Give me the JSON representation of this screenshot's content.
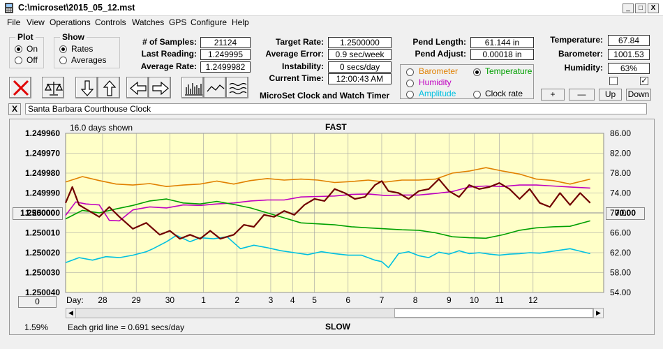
{
  "window": {
    "title": "C:\\microset\\2015_05_12.mst",
    "controls": [
      "_",
      "□",
      "X"
    ]
  },
  "menu": [
    "File",
    "View",
    "Operations",
    "Controls",
    "Watches",
    "GPS",
    "Configure",
    "Help"
  ],
  "plot_group": {
    "title": "Plot",
    "on": "On",
    "off": "Off",
    "selected": "On"
  },
  "show_group": {
    "title": "Show",
    "rates": "Rates",
    "averages": "Averages",
    "selected": "Rates"
  },
  "stats": {
    "samples_label": "# of Samples:",
    "samples": "21124",
    "last_label": "Last Reading:",
    "last": "1.249995",
    "avg_label": "Average Rate:",
    "avg": "1.2499982",
    "target_label": "Target Rate:",
    "target": "1.2500000",
    "avgerr_label": "Average Error:",
    "avgerr": "0.9 sec/week",
    "instab_label": "Instability:",
    "instab": "0 secs/day",
    "time_label": "Current Time:",
    "time": "12:00:43 AM",
    "pendlen_label": "Pend Length:",
    "pendlen": "61.144 in",
    "pendadj_label": "Pend Adjust:",
    "pendadj": "0.00018 in",
    "temp_label": "Temperature:",
    "temp": "67.84",
    "baro_label": "Barometer:",
    "baro": "1001.53",
    "hum_label": "Humidity:",
    "hum": "63%"
  },
  "app_caption": "MicroSet Clock and Watch Timer",
  "sensor_options": {
    "barometer": "Barometer",
    "temperature": "Temperature",
    "humidity": "Humidity",
    "amplitude": "Amplitude",
    "clock_rate": "Clock rate",
    "selected": "Temperature"
  },
  "sensor_colors": {
    "barometer": "#e08000",
    "temperature": "#00a000",
    "humidity": "#c000c0",
    "amplitude": "#00c0e0",
    "clock_rate": "#000000"
  },
  "right_buttons": {
    "plus": "+",
    "minus": "—",
    "up": "Up",
    "down": "Down"
  },
  "checks": {
    "left": false,
    "right": true,
    "right_mark": "✓"
  },
  "toolbar_icons": [
    "close-x-icon",
    "balance-scale-icon",
    "arrow-down-icon",
    "arrow-up-icon",
    "arrow-left-icon",
    "arrow-right-icon",
    "bar-chart-icon",
    "line-wave-icon",
    "multi-wave-icon"
  ],
  "watch_name": "Santa Barbara Courthouse Clock",
  "watch_close": "X",
  "chart": {
    "days_shown": "16.0 days shown",
    "fast": "FAST",
    "slow": "SLOW",
    "pct": "1.59%",
    "grid_note": "Each grid line = 0.691 secs/day",
    "left_btn": "1.250000",
    "bottom_btn": "0",
    "right_btn": "70.00",
    "day_label": "Day:"
  },
  "chart_data": {
    "type": "line",
    "left_axis": {
      "ticks": [
        "1.249960",
        "1.249970",
        "1.249980",
        "1.249990",
        "1.250000",
        "1.250010",
        "1.250020",
        "1.250030",
        "1.250040"
      ],
      "min": 1.24996,
      "max": 1.25004,
      "inverted": true
    },
    "right_axis": {
      "ticks": [
        "86.00",
        "82.00",
        "78.00",
        "74.00",
        "70.00",
        "66.00",
        "62.00",
        "58.00",
        "54.00"
      ],
      "min": 54,
      "max": 86
    },
    "x_axis": {
      "label": "Day:",
      "ticks": [
        "28",
        "29",
        "30",
        "1",
        "2",
        "3",
        "4",
        "5",
        "6",
        "7",
        "8",
        "9",
        "10",
        "11",
        "12"
      ],
      "tick_pos": [
        1.1,
        2.1,
        3.1,
        4.1,
        5.1,
        6.1,
        6.75,
        7.4,
        8.4,
        9.4,
        10.4,
        11.4,
        12.15,
        12.9,
        13.9
      ],
      "range": [
        0,
        16
      ]
    },
    "grid": true,
    "series": [
      {
        "key": "clock_rate",
        "axis": "left",
        "color": "#700000",
        "x": [
          0,
          0.2,
          0.4,
          0.7,
          1.0,
          1.3,
          1.6,
          2.0,
          2.4,
          2.8,
          3.1,
          3.4,
          3.7,
          4.0,
          4.3,
          4.6,
          5.0,
          5.3,
          5.6,
          5.9,
          6.2,
          6.5,
          6.8,
          7.1,
          7.4,
          7.7,
          8.0,
          8.3,
          8.6,
          8.9,
          9.2,
          9.4,
          9.6,
          9.9,
          10.2,
          10.5,
          10.8,
          11.1,
          11.4,
          11.7,
          12.0,
          12.3,
          12.6,
          12.9,
          13.2,
          13.5,
          13.8,
          14.1,
          14.4,
          14.7,
          15.0,
          15.3,
          15.6
        ],
        "y": [
          1.249995,
          1.249987,
          1.249996,
          1.249999,
          1.250002,
          1.249997,
          1.250002,
          1.250008,
          1.250005,
          1.250011,
          1.250009,
          1.250013,
          1.250011,
          1.250013,
          1.250009,
          1.250013,
          1.250011,
          1.250006,
          1.250007,
          1.250001,
          1.250002,
          1.249999,
          1.250001,
          1.249996,
          1.249993,
          1.249994,
          1.249988,
          1.24999,
          1.249993,
          1.249992,
          1.249986,
          1.249984,
          1.249989,
          1.24999,
          1.249993,
          1.249989,
          1.249988,
          1.249983,
          1.249989,
          1.249992,
          1.249986,
          1.249988,
          1.249987,
          1.249985,
          1.249988,
          1.249993,
          1.249988,
          1.249995,
          1.249997,
          1.24999,
          1.249996,
          1.24999,
          1.249995
        ]
      },
      {
        "key": "temperature",
        "axis": "right",
        "color": "#00a000",
        "x": [
          0,
          0.5,
          1.0,
          1.5,
          2.0,
          2.5,
          3.0,
          3.5,
          4.0,
          4.5,
          5.0,
          5.5,
          6.0,
          6.5,
          7.0,
          7.5,
          8.0,
          8.5,
          9.0,
          9.5,
          10.0,
          10.5,
          11.0,
          11.5,
          12.0,
          12.5,
          13.0,
          13.5,
          14.0,
          14.5,
          15.0,
          15.6
        ],
        "y": [
          68.8,
          70.5,
          70.0,
          70.8,
          71.5,
          72.4,
          72.8,
          72.0,
          71.8,
          72.3,
          71.7,
          71.0,
          70.0,
          69.0,
          68.0,
          67.8,
          67.6,
          67.2,
          67.0,
          66.8,
          66.6,
          66.5,
          66.0,
          65.2,
          65.0,
          64.9,
          65.6,
          66.5,
          67.0,
          67.2,
          67.3,
          68.4
        ]
      },
      {
        "key": "humidity",
        "axis": "right",
        "color": "#c000c0",
        "x": [
          0,
          0.3,
          0.6,
          1.0,
          1.3,
          1.6,
          2.0,
          2.5,
          3.0,
          3.5,
          4.0,
          4.5,
          5.0,
          5.5,
          6.0,
          6.5,
          7.0,
          7.5,
          8.0,
          8.5,
          9.0,
          9.5,
          10.0,
          10.5,
          11.0,
          11.5,
          12.0,
          12.5,
          13.0,
          13.5,
          14.0,
          14.5,
          15.0,
          15.6
        ],
        "y": [
          69.5,
          72.2,
          71.8,
          71.6,
          68.5,
          68.4,
          70.6,
          71.2,
          71.0,
          71.6,
          71.5,
          71.8,
          72.0,
          72.4,
          72.6,
          72.6,
          73.2,
          73.3,
          73.4,
          73.7,
          73.8,
          73.5,
          73.6,
          73.6,
          73.9,
          74.3,
          75.2,
          75.4,
          75.3,
          75.6,
          75.6,
          75.4,
          75.2,
          75.0
        ]
      },
      {
        "key": "barometer",
        "axis": "right",
        "color": "#e08000",
        "x": [
          0,
          0.5,
          1.0,
          1.5,
          2.0,
          2.5,
          3.0,
          3.5,
          4.0,
          4.5,
          5.0,
          5.5,
          6.0,
          6.5,
          7.0,
          7.5,
          8.0,
          8.5,
          9.0,
          9.5,
          10.0,
          10.5,
          11.0,
          11.5,
          12.0,
          12.5,
          13.0,
          13.5,
          14.0,
          14.5,
          15.0,
          15.6
        ],
        "y": [
          76.2,
          77.3,
          76.5,
          75.8,
          75.6,
          75.9,
          75.3,
          75.6,
          75.8,
          76.4,
          75.8,
          76.5,
          76.9,
          76.6,
          76.8,
          76.6,
          76.1,
          76.3,
          76.6,
          76.2,
          76.6,
          76.6,
          76.8,
          78.0,
          78.4,
          79.1,
          78.4,
          77.8,
          76.8,
          76.5,
          75.8,
          76.8
        ]
      },
      {
        "key": "amplitude",
        "axis": "right",
        "color": "#00c0e0",
        "x": [
          0,
          0.4,
          0.8,
          1.2,
          1.6,
          2.0,
          2.4,
          2.6,
          2.8,
          3.0,
          3.3,
          3.7,
          4.0,
          4.4,
          4.8,
          5.2,
          5.6,
          6.0,
          6.4,
          6.8,
          7.2,
          7.6,
          8.0,
          8.4,
          8.8,
          9.2,
          9.4,
          9.6,
          9.9,
          10.2,
          10.5,
          10.8,
          11.1,
          11.4,
          11.7,
          12.0,
          12.3,
          12.6,
          12.9,
          13.2,
          13.5,
          13.8,
          14.1,
          14.4,
          14.7,
          15.0,
          15.3,
          15.6
        ],
        "y": [
          60.0,
          61.0,
          60.5,
          61.2,
          61.0,
          61.5,
          62.2,
          62.8,
          63.5,
          64.2,
          65.5,
          64.2,
          65.0,
          64.8,
          65.2,
          62.8,
          63.5,
          63.0,
          62.4,
          62.0,
          61.6,
          62.2,
          61.8,
          61.5,
          61.5,
          60.5,
          60.2,
          59.0,
          61.8,
          62.2,
          61.4,
          61.0,
          62.1,
          61.7,
          62.4,
          61.8,
          62.0,
          61.7,
          61.5,
          61.7,
          61.8,
          62.0,
          61.9,
          62.2,
          62.5,
          62.8,
          62.3,
          61.8
        ]
      }
    ]
  }
}
